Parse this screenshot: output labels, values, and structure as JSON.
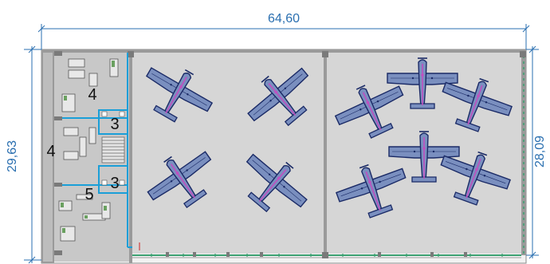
{
  "dimensions": {
    "width_label": "64,60",
    "height_left_label": "29,63",
    "height_right_label": "28,09"
  },
  "rooms": [
    {
      "id": "room-upper-office",
      "label": "4"
    },
    {
      "id": "room-upper-wc",
      "label": "3"
    },
    {
      "id": "room-middle-office",
      "label": "4"
    },
    {
      "id": "room-lower-wc",
      "label": "3"
    },
    {
      "id": "room-lower-office",
      "label": "5"
    }
  ],
  "aircraft": [
    {
      "id": "aircraft-1",
      "rotation": 30
    },
    {
      "id": "aircraft-2",
      "rotation": -40
    },
    {
      "id": "aircraft-3",
      "rotation": -35
    },
    {
      "id": "aircraft-4",
      "rotation": 40
    },
    {
      "id": "aircraft-5",
      "rotation": -25
    },
    {
      "id": "aircraft-6",
      "rotation": 0
    },
    {
      "id": "aircraft-7",
      "rotation": 20
    },
    {
      "id": "aircraft-8",
      "rotation": 0
    },
    {
      "id": "aircraft-9",
      "rotation": -20
    },
    {
      "id": "aircraft-10",
      "rotation": 20
    }
  ],
  "colors": {
    "dimension_line": "#2a6fb0",
    "partition": "#1a9fd8",
    "hangar_floor": "#d6d6d6",
    "office_floor": "#c8c8c8",
    "wall": "#8a8a8a",
    "aircraft_fill": "#7a8fbf",
    "aircraft_stroke": "#1a2a66",
    "aircraft_centerline": "#c050c0",
    "door_track": "#3aa070"
  }
}
